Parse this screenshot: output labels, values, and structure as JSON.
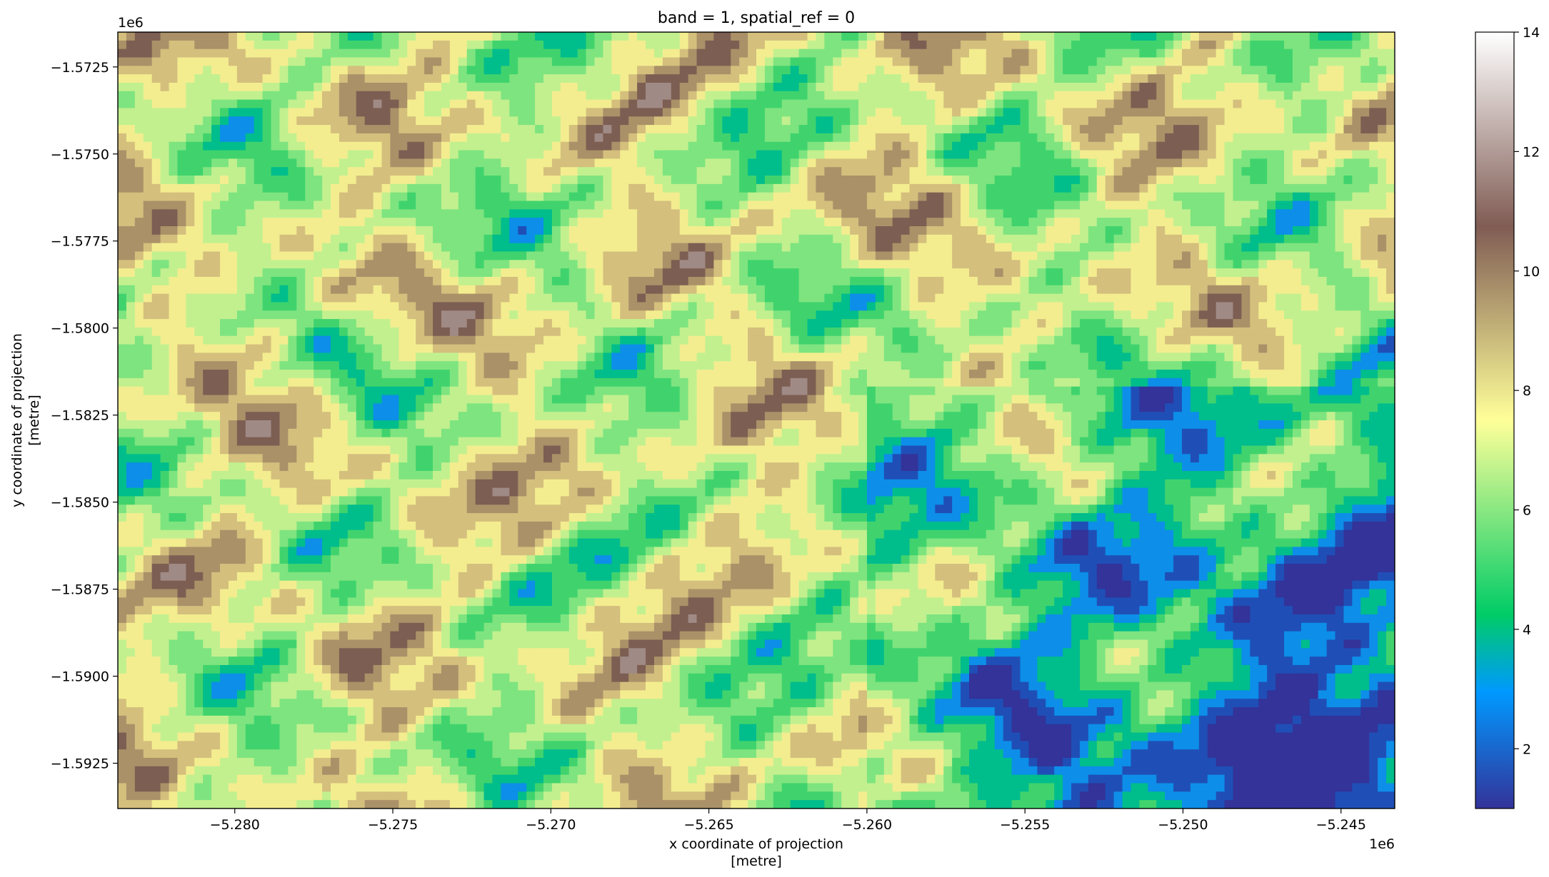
{
  "chart_data": {
    "type": "heatmap",
    "title": "band = 1, spatial_ref = 0",
    "xlabel_line1": "x coordinate of projection",
    "xlabel_line2": "[metre]",
    "ylabel_line1": "y coordinate of projection",
    "ylabel_line2": "[metre]",
    "x_offset_label": "1e6",
    "y_offset_label": "1e6",
    "xlim": [
      -5.2837,
      -5.2433
    ],
    "ylim": [
      -1.5938,
      -1.5715
    ],
    "x_ticks": [
      -5.28,
      -5.275,
      -5.27,
      -5.265,
      -5.26,
      -5.255,
      -5.25,
      -5.245
    ],
    "x_tick_labels": [
      "−5.280",
      "−5.275",
      "−5.270",
      "−5.265",
      "−5.260",
      "−5.255",
      "−5.250",
      "−5.245"
    ],
    "y_ticks": [
      -1.5725,
      -1.575,
      -1.5775,
      -1.58,
      -1.5825,
      -1.585,
      -1.5875,
      -1.59,
      -1.5925
    ],
    "y_tick_labels": [
      "−1.5725",
      "−1.5750",
      "−1.5775",
      "−1.5800",
      "−1.5825",
      "−1.5850",
      "−1.5875",
      "−1.5900",
      "−1.5925"
    ],
    "colorbar": {
      "colormap": "terrain",
      "vmin": 1,
      "vmax": 14,
      "ticks": [
        2,
        4,
        6,
        8,
        10,
        12,
        14
      ],
      "tick_labels": [
        "2",
        "4",
        "6",
        "8",
        "10",
        "12",
        "14"
      ]
    },
    "palette": [
      "#333399",
      "#1f4fb6",
      "#0d8ee9",
      "#00bd8c",
      "#40d36d",
      "#7ee47f",
      "#c2f08f",
      "#f3ed8f",
      "#d4bf7d",
      "#aa9168",
      "#7d5e52",
      "#a08a85",
      "#cfc5c2",
      "#ffffff"
    ],
    "grid": false
  }
}
